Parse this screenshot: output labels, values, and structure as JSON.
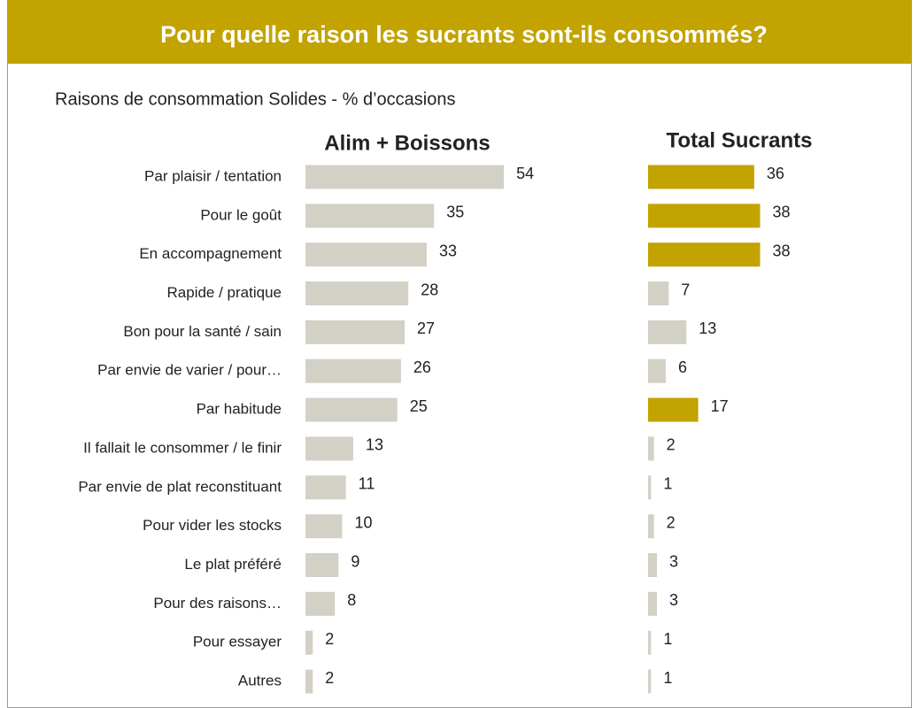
{
  "chart_data": {
    "type": "bar",
    "orientation": "horizontal",
    "title": "Pour quelle raison les sucrants sont-ils consommés?",
    "subtitle": "Raisons de consommation Solides  - % d’occasions",
    "categories": [
      "Par plaisir / tentation",
      "Pour le goût",
      "En accompagnement",
      "Rapide / pratique",
      "Bon pour la santé / sain",
      "Par envie de varier / pour…",
      "Par habitude",
      "Il fallait le consommer / le finir",
      "Par envie de plat reconstituant",
      "Pour vider les stocks",
      "Le plat préféré",
      "Pour des raisons…",
      "Pour essayer",
      "Autres"
    ],
    "series": [
      {
        "name": "Alim + Boissons",
        "color": "#d3d1c6",
        "values": [
          54,
          35,
          33,
          28,
          27,
          26,
          25,
          13,
          11,
          10,
          9,
          8,
          2,
          2
        ]
      },
      {
        "name": "Total Sucrants",
        "colors": [
          "#c2a300",
          "#c2a300",
          "#c2a300",
          "#d3d1c6",
          "#d3d1c6",
          "#d3d1c6",
          "#c2a300",
          "#d3d1c6",
          "#d3d1c6",
          "#d3d1c6",
          "#d3d1c6",
          "#d3d1c6",
          "#d3d1c6",
          "#d3d1c6"
        ],
        "values": [
          36,
          38,
          38,
          7,
          13,
          6,
          17,
          2,
          1,
          2,
          3,
          3,
          1,
          1
        ]
      }
    ],
    "header_color": "#c2a300"
  }
}
